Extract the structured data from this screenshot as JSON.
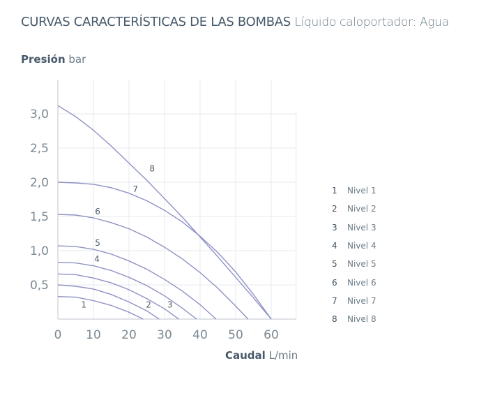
{
  "title": {
    "main": "CURVAS CARACTERÍSTICAS DE LAS BOMBAS",
    "sub": "Líquido caloportador: Agua"
  },
  "chart_data": {
    "type": "line",
    "ylabel": {
      "name": "Presión",
      "unit": "bar"
    },
    "xlabel": {
      "name": "Caudal",
      "unit": "L/min"
    },
    "xlim": [
      0,
      67
    ],
    "ylim": [
      0,
      3.5
    ],
    "xticks": [
      "0",
      "10",
      "20",
      "30",
      "40",
      "50",
      "60"
    ],
    "xtick_values": [
      0,
      10,
      20,
      30,
      40,
      50,
      60
    ],
    "yticks": [
      "0,5",
      "1,0",
      "1,5",
      "2,0",
      "2,5",
      "3,0"
    ],
    "ytick_values": [
      0.5,
      1.0,
      1.5,
      2.0,
      2.5,
      3.0
    ],
    "grid": true,
    "line_color": "#8e91c4",
    "legend_position": "right",
    "series": [
      {
        "name": "Nivel 1",
        "label": "1",
        "points": [
          [
            0,
            0.33
          ],
          [
            5,
            0.32
          ],
          [
            10,
            0.27
          ],
          [
            15,
            0.2
          ],
          [
            20,
            0.1
          ],
          [
            24,
            0
          ]
        ]
      },
      {
        "name": "Nivel 2",
        "label": "2",
        "points": [
          [
            0,
            0.5
          ],
          [
            5,
            0.48
          ],
          [
            10,
            0.44
          ],
          [
            15,
            0.36
          ],
          [
            20,
            0.25
          ],
          [
            25,
            0.12
          ],
          [
            28.5,
            0
          ]
        ]
      },
      {
        "name": "Nivel 3",
        "label": "3",
        "points": [
          [
            0,
            0.66
          ],
          [
            5,
            0.65
          ],
          [
            10,
            0.6
          ],
          [
            15,
            0.53
          ],
          [
            20,
            0.43
          ],
          [
            25,
            0.3
          ],
          [
            30,
            0.15
          ],
          [
            34,
            0
          ]
        ]
      },
      {
        "name": "Nivel 4",
        "label": "4",
        "points": [
          [
            0,
            0.83
          ],
          [
            5,
            0.82
          ],
          [
            10,
            0.78
          ],
          [
            15,
            0.71
          ],
          [
            20,
            0.61
          ],
          [
            25,
            0.49
          ],
          [
            30,
            0.34
          ],
          [
            35,
            0.16
          ],
          [
            39,
            0
          ]
        ]
      },
      {
        "name": "Nivel 5",
        "label": "5",
        "points": [
          [
            0,
            1.07
          ],
          [
            5,
            1.06
          ],
          [
            10,
            1.02
          ],
          [
            15,
            0.95
          ],
          [
            20,
            0.85
          ],
          [
            25,
            0.73
          ],
          [
            30,
            0.58
          ],
          [
            35,
            0.41
          ],
          [
            40,
            0.21
          ],
          [
            44.5,
            0
          ]
        ]
      },
      {
        "name": "Nivel 6",
        "label": "6",
        "points": [
          [
            0,
            1.53
          ],
          [
            5,
            1.52
          ],
          [
            10,
            1.48
          ],
          [
            15,
            1.41
          ],
          [
            20,
            1.32
          ],
          [
            25,
            1.2
          ],
          [
            30,
            1.05
          ],
          [
            35,
            0.88
          ],
          [
            40,
            0.68
          ],
          [
            45,
            0.45
          ],
          [
            50,
            0.19
          ],
          [
            53.5,
            0
          ]
        ]
      },
      {
        "name": "Nivel 7",
        "label": "7",
        "points": [
          [
            0,
            2.0
          ],
          [
            5,
            1.99
          ],
          [
            10,
            1.97
          ],
          [
            15,
            1.92
          ],
          [
            20,
            1.84
          ],
          [
            25,
            1.73
          ],
          [
            30,
            1.59
          ],
          [
            35,
            1.42
          ],
          [
            40,
            1.21
          ],
          [
            45,
            0.97
          ],
          [
            50,
            0.69
          ],
          [
            55,
            0.36
          ],
          [
            60,
            0
          ]
        ]
      },
      {
        "name": "Nivel 8",
        "label": "8",
        "points": [
          [
            0,
            3.12
          ],
          [
            5,
            2.96
          ],
          [
            10,
            2.76
          ],
          [
            15,
            2.53
          ],
          [
            20,
            2.28
          ],
          [
            25,
            2.03
          ],
          [
            30,
            1.76
          ],
          [
            35,
            1.49
          ],
          [
            40,
            1.2
          ],
          [
            45,
            0.91
          ],
          [
            50,
            0.61
          ],
          [
            55,
            0.31
          ],
          [
            60,
            0
          ]
        ]
      }
    ]
  }
}
